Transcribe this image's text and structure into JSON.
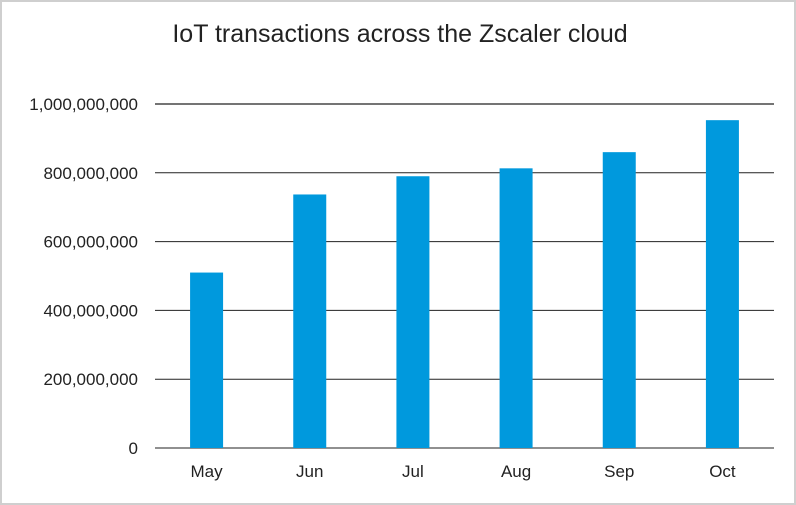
{
  "chart_data": {
    "type": "bar",
    "title": "IoT transactions across the Zscaler cloud",
    "categories": [
      "May",
      "Jun",
      "Jul",
      "Aug",
      "Sep",
      "Oct"
    ],
    "values": [
      510000000,
      737000000,
      790000000,
      813000000,
      860000000,
      953000000
    ],
    "ylim": [
      0,
      1000000000
    ],
    "yticks": [
      0,
      200000000,
      400000000,
      600000000,
      800000000,
      1000000000
    ],
    "ytick_labels": [
      "0",
      "200,000,000",
      "400,000,000",
      "600,000,000",
      "800,000,000",
      "1,000,000,000"
    ],
    "bar_color": "#0099DD",
    "gridline_color": "#222222",
    "grid": true,
    "legend": "none"
  }
}
